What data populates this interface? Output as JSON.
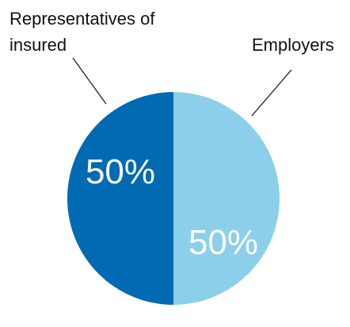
{
  "chart_data": {
    "type": "pie",
    "title": "",
    "slices": [
      {
        "label": "Employers",
        "value": 50,
        "value_label": "50%",
        "color": "#8ccfea"
      },
      {
        "label": "Representatives of insured",
        "value": 50,
        "value_label": "50%",
        "color": "#006ab2"
      }
    ],
    "legend": "none",
    "callouts": {
      "left_line1": "Representatives of",
      "left_line2": "insured",
      "right": "Employers"
    }
  }
}
